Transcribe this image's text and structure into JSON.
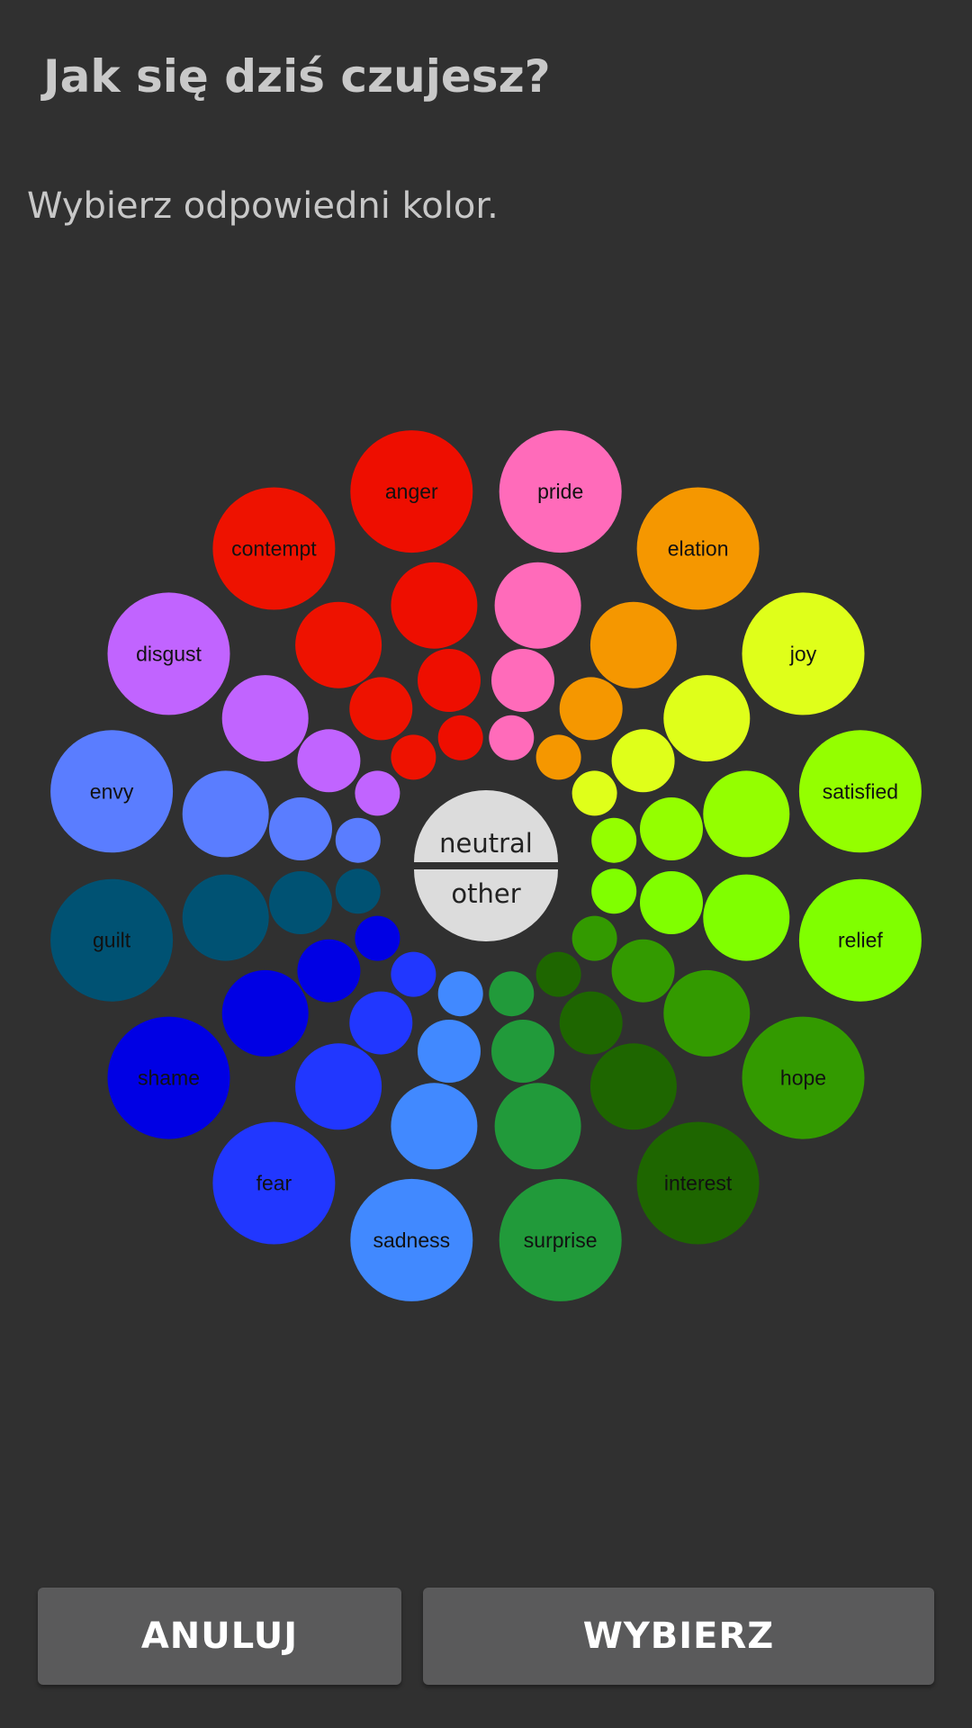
{
  "header": {
    "title": "Jak się dziś czujesz?",
    "subtitle": "Wybierz odpowiedni kolor."
  },
  "center": {
    "neutral_label": "neutral",
    "other_label": "other",
    "color": "#dcdcdc"
  },
  "emotions": [
    {
      "label": "anger",
      "color": "#ee0e00"
    },
    {
      "label": "pride",
      "color": "#ff6bba"
    },
    {
      "label": "elation",
      "color": "#f59700"
    },
    {
      "label": "joy",
      "color": "#dfff1a"
    },
    {
      "label": "satisfied",
      "color": "#94ff00"
    },
    {
      "label": "relief",
      "color": "#80ff00"
    },
    {
      "label": "hope",
      "color": "#339a00"
    },
    {
      "label": "interest",
      "color": "#1e6600"
    },
    {
      "label": "surprise",
      "color": "#219a3a"
    },
    {
      "label": "sadness",
      "color": "#4189ff"
    },
    {
      "label": "fear",
      "color": "#2137ff"
    },
    {
      "label": "shame",
      "color": "#0000e4"
    },
    {
      "label": "guilt",
      "color": "#005273"
    },
    {
      "label": "envy",
      "color": "#5a7dff"
    },
    {
      "label": "disgust",
      "color": "#c164ff"
    },
    {
      "label": "contempt",
      "color": "#ee1200"
    }
  ],
  "buttons": {
    "cancel": "ANULUJ",
    "select": "WYBIERZ"
  }
}
